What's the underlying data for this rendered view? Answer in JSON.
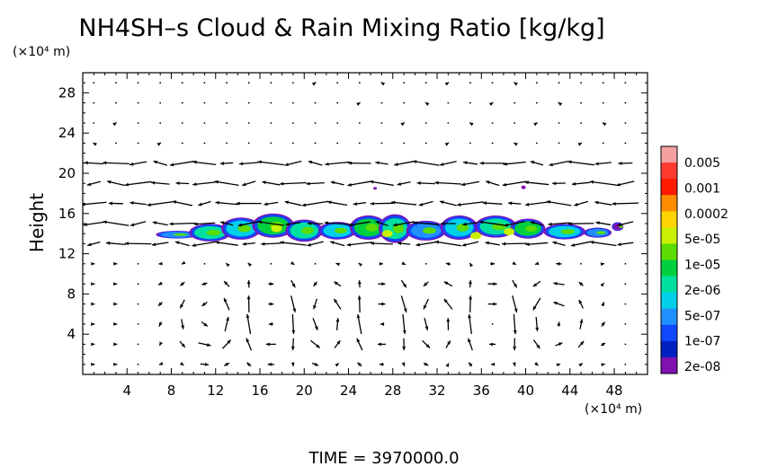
{
  "chart_data": {
    "type": "heatmap",
    "title": "NH4SH–s Cloud & Rain Mixing Ratio [kg/kg]",
    "ylabel": "Height",
    "xlabel": "",
    "x_unit": "(×10⁴ m)",
    "y_unit": "(×10⁴ m)",
    "footer": "TIME  =  3970000.0",
    "xlim": [
      0,
      51
    ],
    "ylim": [
      0,
      30
    ],
    "x_ticks": [
      4,
      8,
      12,
      16,
      20,
      24,
      28,
      32,
      36,
      40,
      44,
      48
    ],
    "y_ticks": [
      4,
      8,
      12,
      16,
      20,
      24,
      28
    ],
    "x_tick_labels": [
      "4",
      "8",
      "12",
      "16",
      "20",
      "24",
      "28",
      "32",
      "36",
      "40",
      "44",
      "48"
    ],
    "y_tick_labels": [
      "4",
      "8",
      "12",
      "16",
      "20",
      "24",
      "28"
    ],
    "colorbar": {
      "labels": [
        "0.005",
        "0.001",
        "0.0002",
        "5e-05",
        "1e-05",
        "2e-06",
        "5e-07",
        "1e-07",
        "2e-08"
      ],
      "colors": [
        "#f4a0a0",
        "#ff3b30",
        "#ff1a00",
        "#ff8c00",
        "#ffd400",
        "#c8f000",
        "#5cdc00",
        "#00d040",
        "#00e0a0",
        "#00d0e8",
        "#2090ff",
        "#1048ff",
        "#0020c0",
        "#8010b0"
      ]
    },
    "cloud_layer": {
      "description_values": "mixing ratio mostly 1e-06 to 5e-05 kg/kg",
      "x_range": [
        7,
        49
      ],
      "y_range": [
        12.5,
        16.2
      ],
      "mean_height": 14.3
    },
    "circulation_cells_x": [
      12,
      17,
      22,
      27,
      32,
      37,
      42
    ],
    "grid": false
  }
}
